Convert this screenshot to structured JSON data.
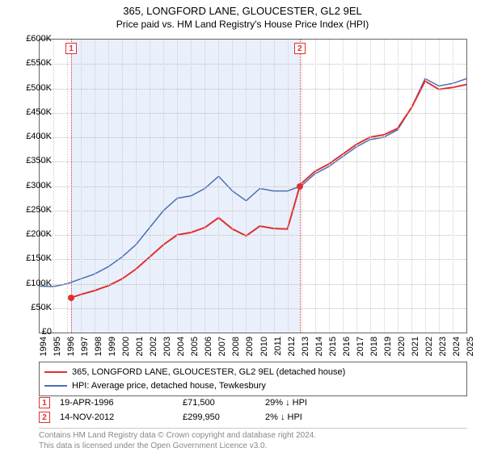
{
  "title": {
    "main": "365, LONGFORD LANE, GLOUCESTER, GL2 9EL",
    "sub": "Price paid vs. HM Land Registry's House Price Index (HPI)"
  },
  "chart": {
    "type": "line",
    "xlim": [
      1994,
      2025
    ],
    "ylim": [
      0,
      600000
    ],
    "ytick_step": 50000,
    "ytick_labels": [
      "£0",
      "£50K",
      "£100K",
      "£150K",
      "£200K",
      "£250K",
      "£300K",
      "£350K",
      "£400K",
      "£450K",
      "£500K",
      "£550K",
      "£600K"
    ],
    "xticks": [
      1994,
      1995,
      1996,
      1997,
      1998,
      1999,
      2000,
      2001,
      2002,
      2003,
      2004,
      2005,
      2006,
      2007,
      2008,
      2009,
      2010,
      2011,
      2012,
      2013,
      2014,
      2015,
      2016,
      2017,
      2018,
      2019,
      2020,
      2021,
      2022,
      2023,
      2024,
      2025
    ],
    "background_color": "#ffffff",
    "grid_color": "#bbbbbb",
    "shade_range": [
      1996.3,
      2012.9
    ],
    "shade_color": "#eaf0fb",
    "series": [
      {
        "name": "HPI: Average price, detached house, Tewkesbury",
        "color": "#4a6fb3",
        "width": 1.5,
        "points": [
          [
            1994,
            95000
          ],
          [
            1995,
            94000
          ],
          [
            1996,
            100000
          ],
          [
            1997,
            110000
          ],
          [
            1998,
            120000
          ],
          [
            1999,
            135000
          ],
          [
            2000,
            155000
          ],
          [
            2001,
            180000
          ],
          [
            2002,
            215000
          ],
          [
            2003,
            250000
          ],
          [
            2004,
            275000
          ],
          [
            2005,
            280000
          ],
          [
            2006,
            295000
          ],
          [
            2007,
            320000
          ],
          [
            2008,
            290000
          ],
          [
            2009,
            270000
          ],
          [
            2010,
            295000
          ],
          [
            2011,
            290000
          ],
          [
            2012,
            290000
          ],
          [
            2013,
            300000
          ],
          [
            2014,
            325000
          ],
          [
            2015,
            340000
          ],
          [
            2016,
            360000
          ],
          [
            2017,
            380000
          ],
          [
            2018,
            395000
          ],
          [
            2019,
            400000
          ],
          [
            2020,
            415000
          ],
          [
            2021,
            460000
          ],
          [
            2022,
            520000
          ],
          [
            2023,
            505000
          ],
          [
            2024,
            510000
          ],
          [
            2025,
            520000
          ]
        ]
      },
      {
        "name": "365, LONGFORD LANE, GLOUCESTER, GL2 9EL (detached house)",
        "color": "#e03030",
        "width": 2,
        "points": [
          [
            1996.3,
            71500
          ],
          [
            1997,
            78000
          ],
          [
            1998,
            86000
          ],
          [
            1999,
            96000
          ],
          [
            2000,
            110000
          ],
          [
            2001,
            130000
          ],
          [
            2002,
            155000
          ],
          [
            2003,
            180000
          ],
          [
            2004,
            200000
          ],
          [
            2005,
            205000
          ],
          [
            2006,
            215000
          ],
          [
            2007,
            235000
          ],
          [
            2008,
            212000
          ],
          [
            2009,
            198000
          ],
          [
            2010,
            218000
          ],
          [
            2011,
            213000
          ],
          [
            2012,
            212000
          ],
          [
            2012.9,
            299950
          ],
          [
            2013,
            305000
          ],
          [
            2014,
            330000
          ],
          [
            2015,
            345000
          ],
          [
            2016,
            365000
          ],
          [
            2017,
            385000
          ],
          [
            2018,
            400000
          ],
          [
            2019,
            405000
          ],
          [
            2020,
            418000
          ],
          [
            2021,
            460000
          ],
          [
            2022,
            515000
          ],
          [
            2023,
            498000
          ],
          [
            2024,
            502000
          ],
          [
            2025,
            508000
          ]
        ]
      }
    ],
    "markers": [
      {
        "x": 1996.3,
        "y": 71500,
        "color": "#e03030"
      },
      {
        "x": 2012.9,
        "y": 299950,
        "color": "#e03030"
      }
    ],
    "events": [
      {
        "n": "1",
        "x": 1996.3,
        "date": "19-APR-1996",
        "price": "£71,500",
        "pct": "29% ↓ HPI"
      },
      {
        "n": "2",
        "x": 2012.9,
        "date": "14-NOV-2012",
        "price": "£299,950",
        "pct": "2% ↓ HPI"
      }
    ],
    "event_line_color": "#e03030"
  },
  "legend": {
    "items": [
      {
        "color": "#e03030",
        "label": "365, LONGFORD LANE, GLOUCESTER, GL2 9EL (detached house)"
      },
      {
        "color": "#4a6fb3",
        "label": "HPI: Average price, detached house, Tewkesbury"
      }
    ]
  },
  "footer": {
    "line1": "Contains HM Land Registry data © Crown copyright and database right 2024.",
    "line2": "This data is licensed under the Open Government Licence v3.0."
  }
}
